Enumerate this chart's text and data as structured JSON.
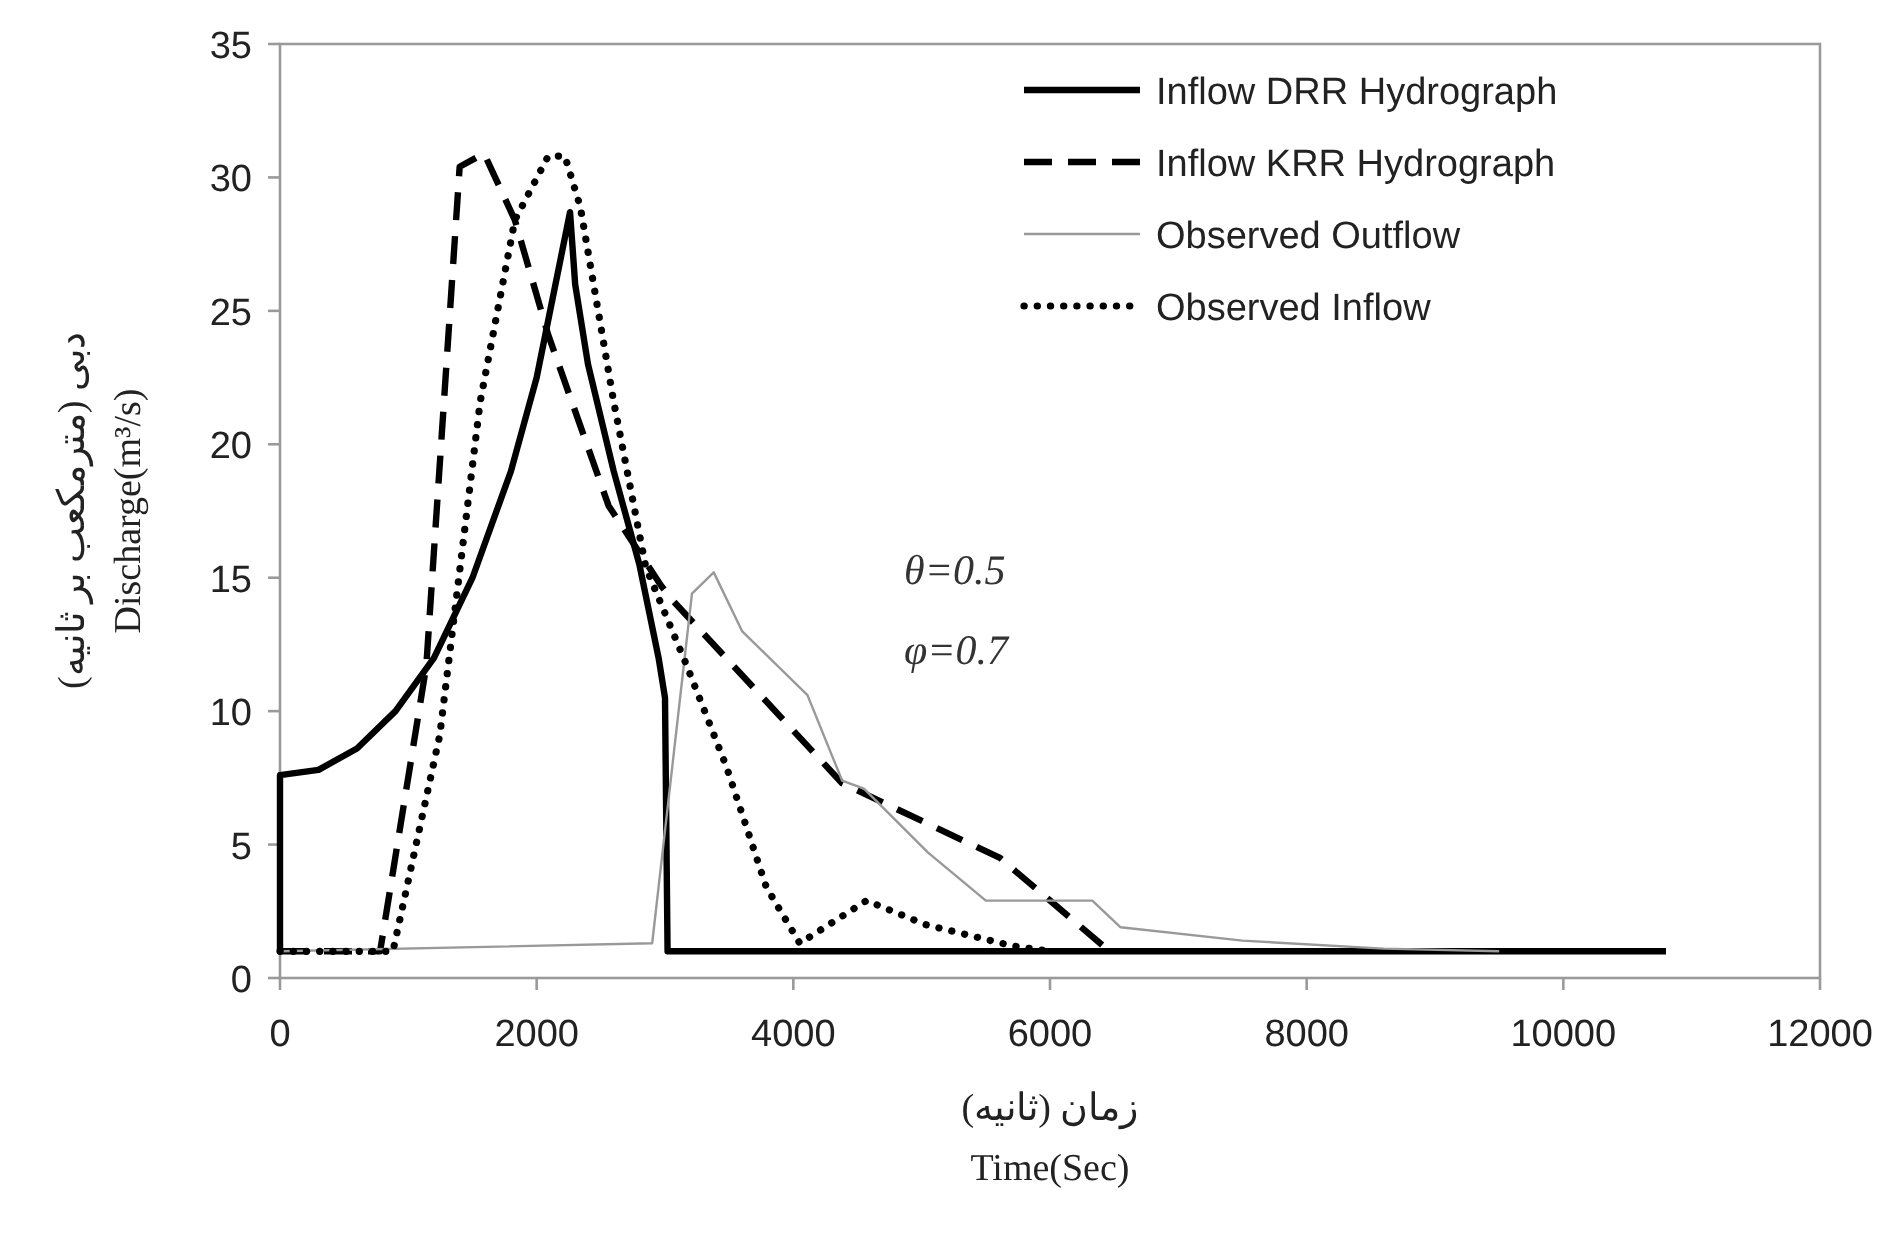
{
  "chart_data": {
    "type": "line",
    "xlabel": "زمان (ثانیه)\nTime(Sec)",
    "ylabel": "دبی (مترمکعب بر ثانیه)\nDischarge(m³/s)",
    "xlim": [
      0,
      12000
    ],
    "xticks": [
      0,
      2000,
      4000,
      6000,
      8000,
      10000,
      12000
    ],
    "ylim": [
      0,
      35
    ],
    "yticks": [
      0,
      5,
      10,
      15,
      20,
      25,
      30,
      35
    ],
    "grid": false,
    "legend": "top right",
    "marker": "none",
    "annotations": [
      "θ=0.5",
      "φ=0.7"
    ],
    "series": [
      {
        "name": "Inflow DRR Hydrograph",
        "color": "#000000",
        "line_style": "solid",
        "x": [
          0,
          0,
          300,
          600,
          900,
          1200,
          1500,
          1800,
          2000,
          2260,
          2300,
          2400,
          2600,
          2800,
          2950,
          3000,
          3020,
          10800
        ],
        "values": [
          1,
          7.6,
          7.8,
          8.6,
          10,
          12,
          15,
          19,
          22.5,
          28.7,
          26,
          23,
          19,
          15.5,
          12,
          10.5,
          1,
          1
        ]
      },
      {
        "name": "Inflow KRR Hydrograph",
        "color": "#000000",
        "line_style": "dashed",
        "x": [
          0,
          780,
          1140,
          1400,
          1590,
          1830,
          2090,
          2560,
          2970,
          3050,
          4380,
          5610,
          6440
        ],
        "values": [
          1,
          1,
          11.7,
          30.4,
          30.9,
          28.4,
          24.1,
          17.7,
          14.7,
          14.2,
          7.3,
          4.5,
          1.1
        ]
      },
      {
        "name": "Observed Outflow",
        "color": "#999999",
        "line_style": "solid",
        "x": [
          0,
          2900,
          3210,
          3380,
          3600,
          4110,
          4380,
          4550,
          5050,
          5500,
          6330,
          6550,
          7500,
          8600,
          9500
        ],
        "values": [
          1,
          1.3,
          14.4,
          15.2,
          13,
          10.6,
          7.4,
          7.1,
          4.7,
          2.9,
          2.9,
          1.9,
          1.4,
          1.1,
          1
        ]
      },
      {
        "name": "Observed Inflow",
        "color": "#000000",
        "line_style": "dotted",
        "x": [
          0,
          880,
          1245,
          1560,
          1830,
          2090,
          2220,
          2340,
          2600,
          2850,
          3170,
          3480,
          3790,
          4050,
          4570,
          5030,
          5710,
          6000
        ],
        "values": [
          1,
          1,
          9.1,
          21.6,
          28.4,
          30.8,
          30.8,
          28.9,
          21.6,
          15.4,
          11.7,
          7.9,
          3.4,
          1.3,
          2.9,
          2,
          1.2,
          1
        ]
      }
    ]
  }
}
